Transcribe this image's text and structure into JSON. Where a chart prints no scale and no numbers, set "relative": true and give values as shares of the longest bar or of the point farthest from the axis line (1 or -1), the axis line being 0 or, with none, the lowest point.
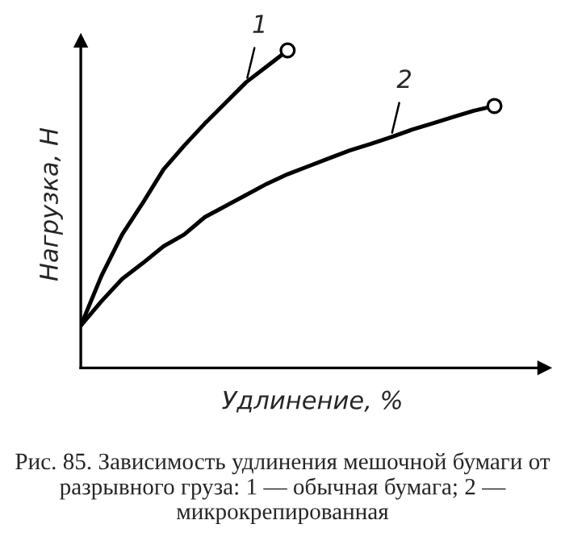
{
  "chart_data": {
    "type": "line",
    "relative": true,
    "xlabel": "Удлинение, %",
    "ylabel": "Нагрузка, Н",
    "line_style": "solid",
    "categories": [
      null,
      null,
      null,
      null,
      null,
      null,
      null,
      null,
      null,
      null,
      null,
      null,
      null,
      null,
      null,
      null,
      null,
      null,
      null,
      null,
      null
    ],
    "series": [
      {
        "name": "1",
        "color": "#000000",
        "values": [
          0.133,
          0.29,
          0.42,
          0.52,
          0.625,
          0.7,
          0.77,
          0.835,
          0.9,
          0.95,
          1.0,
          null,
          null,
          null,
          null,
          null,
          null,
          null,
          null,
          null,
          null
        ]
      },
      {
        "name": "2",
        "color": "#000000",
        "values": [
          0.133,
          0.21,
          0.28,
          0.33,
          0.383,
          0.42,
          0.475,
          0.51,
          0.545,
          0.58,
          0.61,
          0.635,
          0.66,
          0.685,
          0.705,
          0.727,
          0.75,
          0.77,
          0.79,
          0.81,
          0.825
        ]
      }
    ],
    "annotations": [
      "Рис. 85. Зависимость удлинения мешочной бумаги от разрывного груза: 1 — обычная бумага; 2 — микрокрепированная"
    ]
  }
}
